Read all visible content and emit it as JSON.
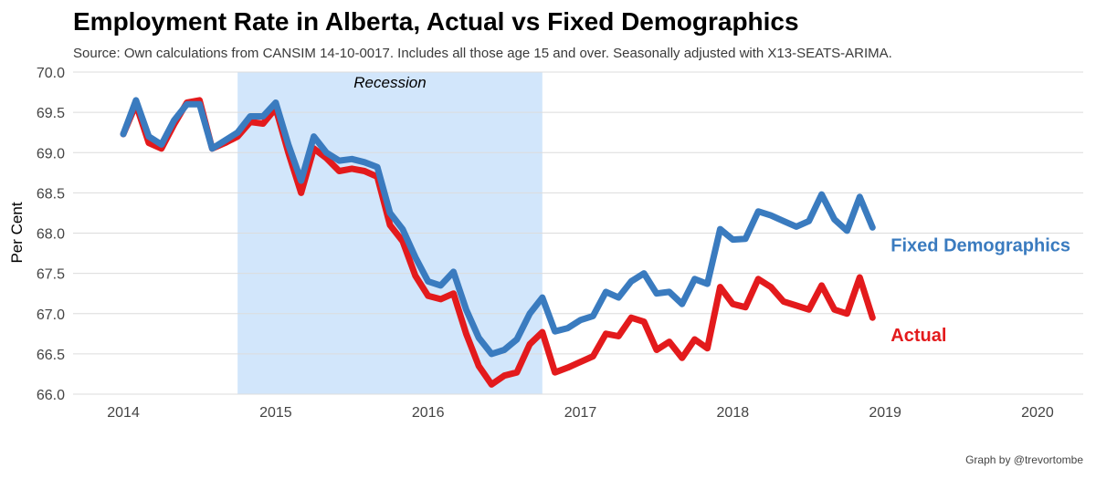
{
  "chart_data": {
    "type": "line",
    "title": "Employment Rate in Alberta, Actual vs Fixed Demographics",
    "subtitle": "Source: Own calculations from CANSIM 14-10-0017. Includes all those age 15 and over. Seasonally adjusted with X13-SEATS-ARIMA.",
    "xlabel": "",
    "ylabel": "Per Cent",
    "xlim": [
      2013.67,
      2020.3
    ],
    "ylim": [
      66.0,
      70.0
    ],
    "x_ticks": [
      2014,
      2015,
      2016,
      2017,
      2018,
      2019,
      2020
    ],
    "y_ticks": [
      66.0,
      66.5,
      67.0,
      67.5,
      68.0,
      68.5,
      69.0,
      69.5,
      70.0
    ],
    "grid": true,
    "shaded_regions": [
      {
        "label": "Recession",
        "x_start": 2014.75,
        "x_end": 2016.75,
        "color": "#d2e6fb"
      }
    ],
    "caption": "Graph by @trevortombe",
    "series": [
      {
        "name": "Actual",
        "label": "Actual",
        "color": "#e31a1c",
        "x": [
          2014.0,
          2014.083,
          2014.167,
          2014.25,
          2014.333,
          2014.417,
          2014.5,
          2014.583,
          2014.667,
          2014.75,
          2014.833,
          2014.917,
          2015.0,
          2015.083,
          2015.167,
          2015.25,
          2015.333,
          2015.417,
          2015.5,
          2015.583,
          2015.667,
          2015.75,
          2015.833,
          2015.917,
          2016.0,
          2016.083,
          2016.167,
          2016.25,
          2016.333,
          2016.417,
          2016.5,
          2016.583,
          2016.667,
          2016.75,
          2016.833,
          2016.917,
          2017.0,
          2017.083,
          2017.167,
          2017.25,
          2017.333,
          2017.417,
          2017.5,
          2017.583,
          2017.667,
          2017.75,
          2017.833,
          2017.917,
          2018.0,
          2018.083,
          2018.167,
          2018.25,
          2018.333,
          2018.417,
          2018.5,
          2018.583,
          2018.667,
          2018.75,
          2018.833,
          2018.917
        ],
        "values": [
          69.23,
          69.6,
          69.12,
          69.05,
          69.35,
          69.62,
          69.65,
          69.05,
          69.12,
          69.2,
          69.38,
          69.36,
          69.55,
          69.0,
          68.5,
          69.05,
          68.93,
          68.77,
          68.8,
          68.77,
          68.7,
          68.1,
          67.9,
          67.47,
          67.22,
          67.18,
          67.25,
          66.75,
          66.35,
          66.12,
          66.23,
          66.27,
          66.62,
          66.77,
          66.27,
          66.33,
          66.4,
          66.47,
          66.75,
          66.72,
          66.95,
          66.9,
          66.55,
          66.65,
          66.45,
          66.68,
          66.57,
          67.33,
          67.12,
          67.08,
          67.43,
          67.33,
          67.15,
          67.1,
          67.05,
          67.35,
          67.05,
          67.0,
          67.45,
          66.95
        ]
      },
      {
        "name": "Fixed Demographics",
        "label": "Fixed Demographics",
        "color": "#3a7bbf",
        "x": [
          2014.0,
          2014.083,
          2014.167,
          2014.25,
          2014.333,
          2014.417,
          2014.5,
          2014.583,
          2014.667,
          2014.75,
          2014.833,
          2014.917,
          2015.0,
          2015.083,
          2015.167,
          2015.25,
          2015.333,
          2015.417,
          2015.5,
          2015.583,
          2015.667,
          2015.75,
          2015.833,
          2015.917,
          2016.0,
          2016.083,
          2016.167,
          2016.25,
          2016.333,
          2016.417,
          2016.5,
          2016.583,
          2016.667,
          2016.75,
          2016.833,
          2016.917,
          2017.0,
          2017.083,
          2017.167,
          2017.25,
          2017.333,
          2017.417,
          2017.5,
          2017.583,
          2017.667,
          2017.75,
          2017.833,
          2017.917,
          2018.0,
          2018.083,
          2018.167,
          2018.25,
          2018.333,
          2018.417,
          2018.5,
          2018.583,
          2018.667,
          2018.75,
          2018.833,
          2018.917
        ],
        "values": [
          69.23,
          69.65,
          69.2,
          69.1,
          69.4,
          69.6,
          69.6,
          69.05,
          69.15,
          69.25,
          69.45,
          69.45,
          69.62,
          69.1,
          68.65,
          69.2,
          69.0,
          68.9,
          68.92,
          68.88,
          68.82,
          68.25,
          68.05,
          67.7,
          67.4,
          67.35,
          67.52,
          67.05,
          66.7,
          66.5,
          66.55,
          66.68,
          67.0,
          67.2,
          66.78,
          66.82,
          66.92,
          66.97,
          67.27,
          67.2,
          67.4,
          67.5,
          67.25,
          67.27,
          67.12,
          67.43,
          67.37,
          68.05,
          67.92,
          67.93,
          68.27,
          68.22,
          68.15,
          68.08,
          68.15,
          68.48,
          68.17,
          68.03,
          68.45,
          68.07
        ]
      }
    ]
  }
}
